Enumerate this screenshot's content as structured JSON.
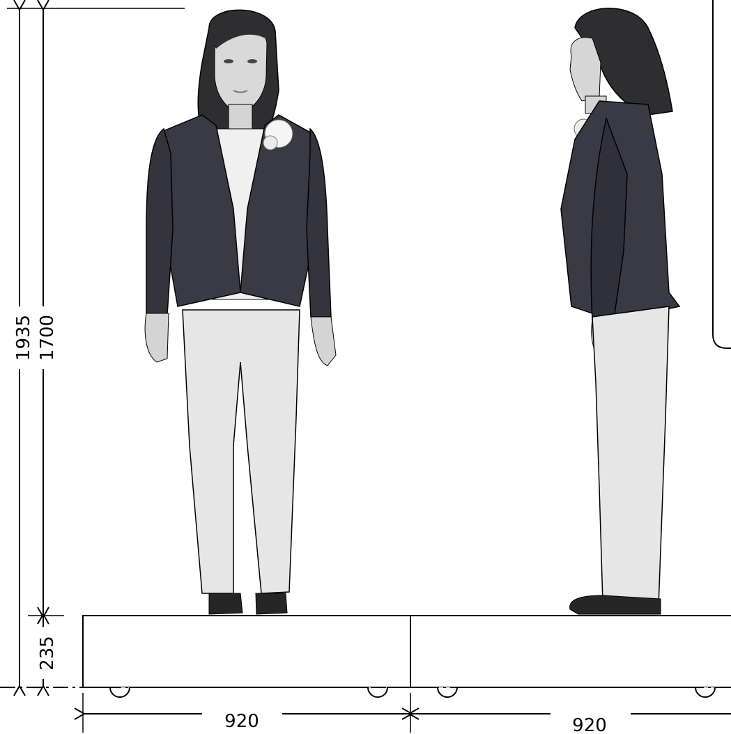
{
  "dimensions": {
    "total_height": "1935",
    "robot_height": "1700",
    "base_height": "235",
    "front_base_width": "920",
    "side_base_width": "920"
  },
  "colors": {
    "line": "#000000",
    "jacket": "#3a3a44",
    "hair": "#2e2e30",
    "pants": "#e6e6e6",
    "skin": "#d4d4d4",
    "shirt": "#f0f0f0",
    "shoe": "#262626"
  }
}
